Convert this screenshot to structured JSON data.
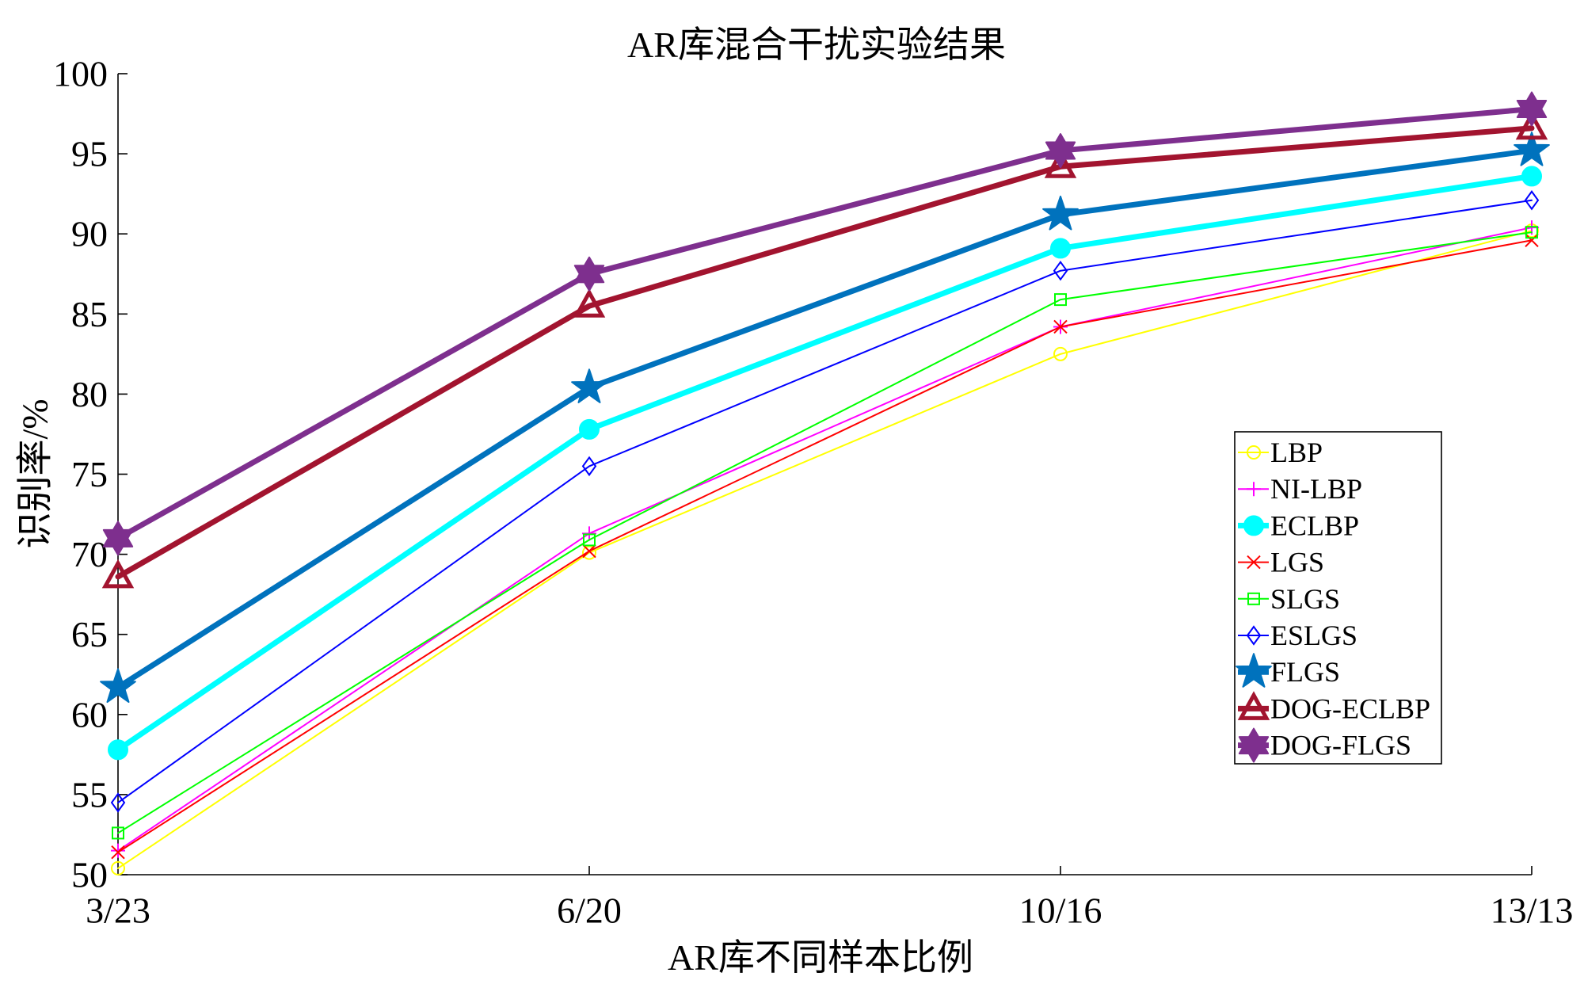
{
  "chart_data": {
    "type": "line",
    "title": "AR库混合干扰实验结果",
    "xlabel": "AR库不同样本比例",
    "ylabel": "识别率/%",
    "categories": [
      "3/23",
      "6/20",
      "10/16",
      "13/13"
    ],
    "ylim": [
      50,
      100
    ],
    "yticks": [
      50,
      55,
      60,
      65,
      70,
      75,
      80,
      85,
      90,
      95,
      100
    ],
    "grid": false,
    "legend_position": "right",
    "series": [
      {
        "name": "LBP",
        "color": "#ffff00",
        "marker": "circle",
        "values": [
          50.4,
          70.1,
          82.5,
          90.2
        ]
      },
      {
        "name": "NI-LBP",
        "color": "#ff00ff",
        "marker": "plus",
        "values": [
          51.5,
          71.3,
          84.2,
          90.4
        ]
      },
      {
        "name": "ECLBP",
        "color": "#00ffff",
        "marker": "filled-circle",
        "values": [
          57.8,
          77.8,
          89.1,
          93.6
        ]
      },
      {
        "name": "LGS",
        "color": "#ff0000",
        "marker": "x",
        "values": [
          51.4,
          70.2,
          84.2,
          89.6
        ]
      },
      {
        "name": "SLGS",
        "color": "#00ff00",
        "marker": "square",
        "values": [
          52.6,
          70.9,
          85.9,
          90.1
        ]
      },
      {
        "name": "ESLGS",
        "color": "#0000ff",
        "marker": "diamond",
        "values": [
          54.5,
          75.5,
          87.7,
          92.1
        ]
      },
      {
        "name": "FLGS",
        "color": "#0072bd",
        "marker": "pentagram",
        "values": [
          61.7,
          80.4,
          91.2,
          95.2
        ]
      },
      {
        "name": "DOG-ECLBP",
        "color": "#a2142f",
        "marker": "triangle",
        "values": [
          68.6,
          85.5,
          94.2,
          96.6
        ]
      },
      {
        "name": "DOG-FLGS",
        "color": "#7e2f8e",
        "marker": "hexagram",
        "values": [
          71.0,
          87.5,
          95.2,
          97.8
        ]
      }
    ]
  }
}
